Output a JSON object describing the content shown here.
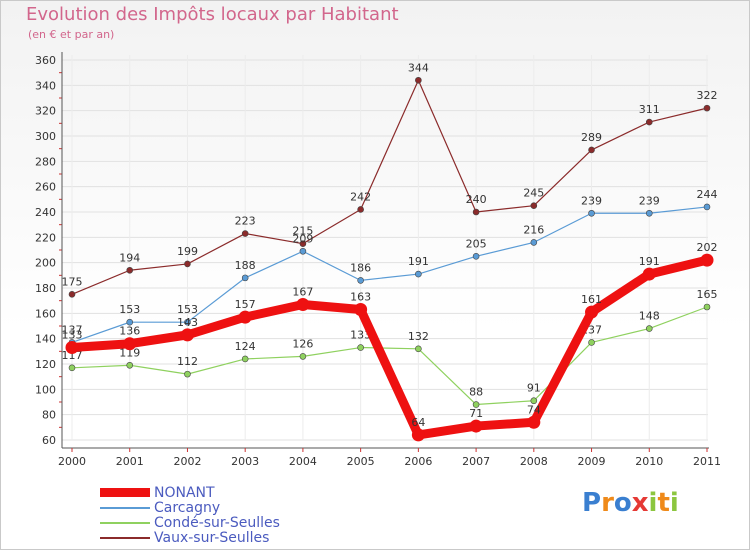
{
  "title": "Evolution des Impôts locaux par Habitant",
  "subtitle": "(en € et par an)",
  "logo_text": "Proxiti",
  "chart_data": {
    "type": "line",
    "title": "Evolution des Impôts locaux par Habitant",
    "ylabel": "(en € et par an)",
    "xlabel": "",
    "ylim": [
      60,
      360
    ],
    "yticks": [
      60,
      80,
      100,
      120,
      140,
      160,
      180,
      200,
      220,
      240,
      260,
      280,
      300,
      320,
      340,
      360
    ],
    "categories": [
      "2000",
      "2001",
      "2002",
      "2003",
      "2004",
      "2005",
      "2006",
      "2007",
      "2008",
      "2009",
      "2010",
      "2011"
    ],
    "series": [
      {
        "name": "Vaux-sur-Seulles",
        "color": "#8b2b2b",
        "values": [
          175,
          194,
          199,
          223,
          215,
          242,
          344,
          240,
          245,
          289,
          311,
          322
        ]
      },
      {
        "name": "Carcagny",
        "color": "#5a9bd5",
        "values": [
          137,
          153,
          153,
          188,
          209,
          186,
          191,
          205,
          216,
          239,
          239,
          244
        ]
      },
      {
        "name": "Condé-sur-Seulles",
        "color": "#8fd15f",
        "values": [
          117,
          119,
          112,
          124,
          126,
          133,
          132,
          88,
          91,
          137,
          148,
          165
        ]
      },
      {
        "name": "NONANT",
        "color": "#ee1111",
        "values": [
          133,
          136,
          143,
          157,
          167,
          163,
          64,
          71,
          74,
          161,
          191,
          202
        ]
      }
    ],
    "legend": [
      "NONANT",
      "Carcagny",
      "Condé-sur-Seulles",
      "Vaux-sur-Seulles"
    ]
  }
}
